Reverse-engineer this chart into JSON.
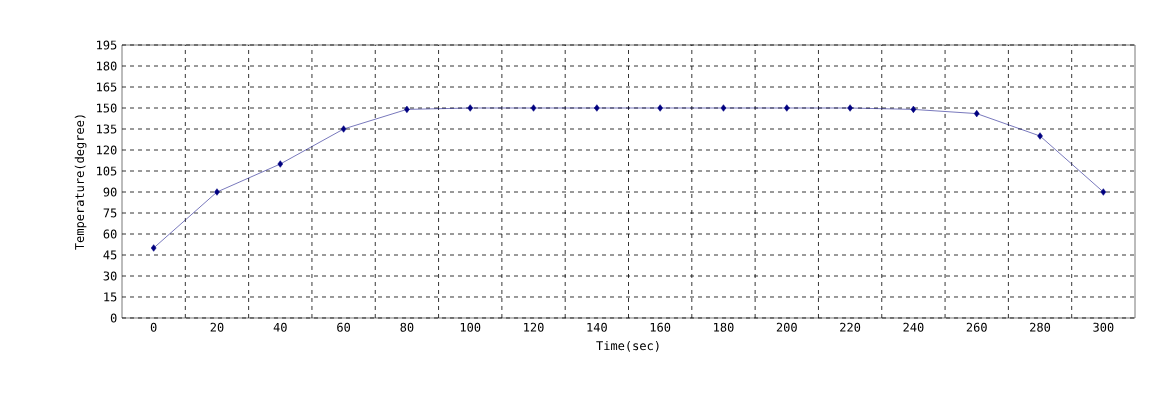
{
  "chart_data": {
    "type": "line",
    "xlabel": "Time(sec)",
    "ylabel": "Temperature(degree)",
    "categories": [
      "0",
      "20",
      "40",
      "60",
      "80",
      "100",
      "120",
      "140",
      "160",
      "180",
      "200",
      "220",
      "240",
      "260",
      "280",
      "300"
    ],
    "values": [
      50,
      90,
      110,
      135,
      149,
      150,
      150,
      150,
      150,
      150,
      150,
      150,
      149,
      146,
      130,
      90
    ],
    "color": "#000080",
    "marker": "diamond",
    "line_style": "solid",
    "grid": true,
    "ylim": [
      0,
      195
    ],
    "yticks": [
      0,
      15,
      30,
      45,
      60,
      75,
      90,
      105,
      120,
      135,
      150,
      165,
      180,
      195
    ]
  }
}
